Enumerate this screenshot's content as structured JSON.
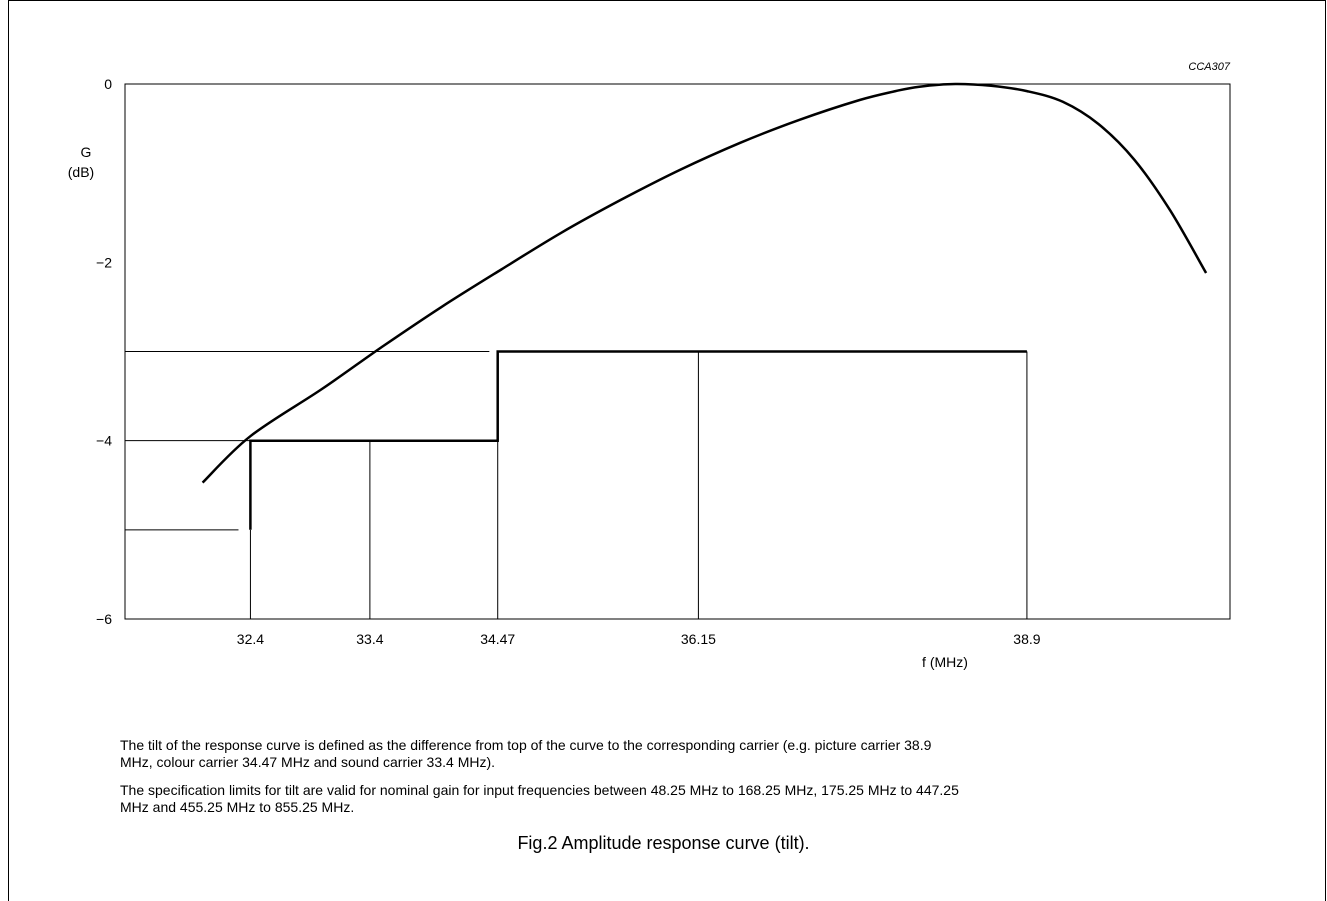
{
  "chart_data": {
    "type": "line",
    "code": "CCA307",
    "ylabel": [
      "G",
      "(dB)"
    ],
    "xlabel": "f (MHz)",
    "ylim": [
      -6,
      0
    ],
    "yticks": [
      {
        "value": 0,
        "label": "0"
      },
      {
        "value": -2,
        "label": "−2"
      },
      {
        "value": -4,
        "label": "−4"
      },
      {
        "value": -6,
        "label": "−6"
      }
    ],
    "xlim": [
      31.35,
      40.6
    ],
    "xticks": [
      {
        "value": 32.4,
        "label": "32.4"
      },
      {
        "value": 33.4,
        "label": "33.4"
      },
      {
        "value": 34.47,
        "label": "34.47"
      },
      {
        "value": 36.15,
        "label": "36.15"
      },
      {
        "value": 38.9,
        "label": "38.9"
      }
    ],
    "series": [
      {
        "role": "response curve",
        "x": [
          32.0,
          32.4,
          33.0,
          33.5,
          34.0,
          34.5,
          35.0,
          35.5,
          36.0,
          36.5,
          37.0,
          37.5,
          37.8,
          38.0,
          38.3,
          38.6,
          38.9,
          39.2,
          39.5,
          39.8,
          40.1,
          40.4
        ],
        "y": [
          -4.47,
          -3.95,
          -3.42,
          -2.95,
          -2.5,
          -2.08,
          -1.67,
          -1.3,
          -0.96,
          -0.66,
          -0.4,
          -0.18,
          -0.08,
          -0.03,
          0.0,
          -0.02,
          -0.08,
          -0.2,
          -0.45,
          -0.85,
          -1.42,
          -2.12
        ]
      },
      {
        "role": "tilt specification limit",
        "x": [
          32.4,
          32.4,
          34.47,
          34.47,
          38.9
        ],
        "y": [
          -5.0,
          -4.0,
          -4.0,
          -3.0,
          -3.0
        ]
      }
    ],
    "reference_lines": {
      "horizontal": [
        {
          "y": -3.0,
          "x_from": 31.35,
          "x_to": 34.4
        },
        {
          "y": -4.0,
          "x_from": 31.35,
          "x_to": 32.4
        },
        {
          "y": -5.0,
          "x_from": 31.35,
          "x_to": 32.3
        }
      ],
      "vertical": [
        {
          "x": 32.4,
          "y_from": -6,
          "y_to": -5.0
        },
        {
          "x": 33.4,
          "y_from": -6,
          "y_to": -4.0
        },
        {
          "x": 34.47,
          "y_from": -6,
          "y_to": -4.0
        },
        {
          "x": 36.15,
          "y_from": -6,
          "y_to": -3.0
        },
        {
          "x": 38.9,
          "y_from": -6,
          "y_to": -3.0
        }
      ]
    }
  },
  "notes": [
    "The tilt of the response curve is defined as the difference from top of the curve to the corresponding carrier (e.g. picture carrier 38.9 MHz, colour carrier 34.47 MHz and sound carrier 33.4 MHz).",
    "The specification limits for tilt are valid for nominal gain for input frequencies between 48.25 MHz to 168.25 MHz, 175.25 MHz to 447.25 MHz and 455.25 MHz to 855.25 MHz."
  ],
  "caption": "Fig.2  Amplitude response curve (tilt)."
}
